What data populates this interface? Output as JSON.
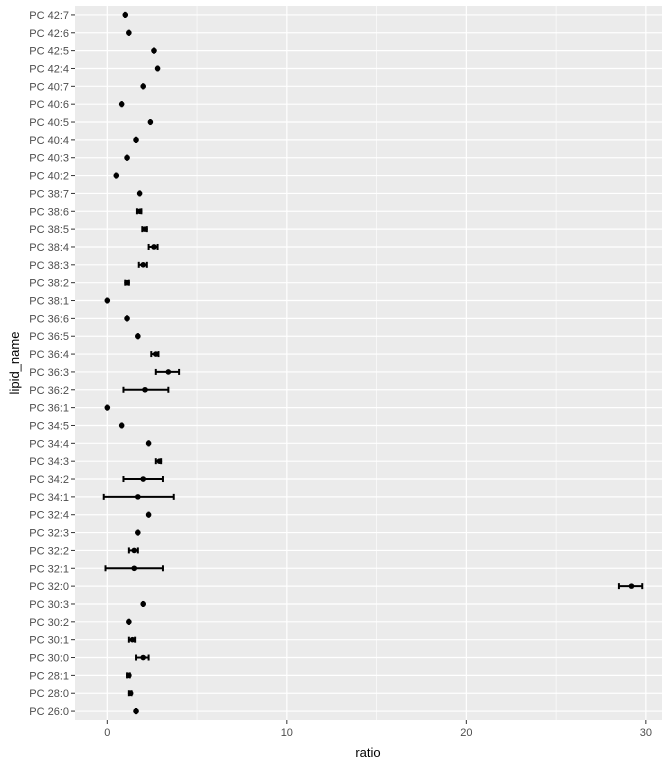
{
  "chart_data": {
    "type": "scatter",
    "xlabel": "ratio",
    "ylabel": "lipid_name",
    "xlim": [
      -1.8,
      30.9
    ],
    "x_ticks": [
      0,
      10,
      20,
      30
    ],
    "x_tick_labels": [
      "0",
      "10",
      "20",
      "30"
    ],
    "grid": true,
    "background": "#EBEBEB",
    "grid_color": "#FFFFFF",
    "point_color": "#000000",
    "categories": [
      "PC 42:7",
      "PC 42:6",
      "PC 42:5",
      "PC 42:4",
      "PC 40:7",
      "PC 40:6",
      "PC 40:5",
      "PC 40:4",
      "PC 40:3",
      "PC 40:2",
      "PC 38:7",
      "PC 38:6",
      "PC 38:5",
      "PC 38:4",
      "PC 38:3",
      "PC 38:2",
      "PC 38:1",
      "PC 36:6",
      "PC 36:5",
      "PC 36:4",
      "PC 36:3",
      "PC 36:2",
      "PC 36:1",
      "PC 34:5",
      "PC 34:4",
      "PC 34:3",
      "PC 34:2",
      "PC 34:1",
      "PC 32:4",
      "PC 32:3",
      "PC 32:2",
      "PC 32:1",
      "PC 32:0",
      "PC 30:3",
      "PC 30:2",
      "PC 30:1",
      "PC 30:0",
      "PC 28:1",
      "PC 28:0",
      "PC 26:0"
    ],
    "values": [
      1.0,
      1.2,
      2.6,
      2.8,
      2.0,
      0.8,
      2.4,
      1.6,
      1.1,
      0.5,
      1.8,
      1.8,
      2.1,
      2.6,
      2.0,
      1.1,
      0.0,
      1.1,
      1.7,
      2.7,
      3.4,
      2.1,
      0.0,
      0.8,
      2.3,
      2.9,
      2.0,
      1.7,
      2.3,
      1.7,
      1.5,
      1.5,
      29.2,
      2.0,
      1.2,
      1.4,
      2.0,
      1.2,
      1.3,
      1.6
    ],
    "error_low": [
      1.0,
      1.2,
      2.6,
      2.8,
      2.0,
      0.8,
      2.4,
      1.6,
      1.1,
      0.5,
      1.8,
      1.65,
      1.95,
      2.3,
      1.75,
      1.0,
      0.0,
      1.1,
      1.7,
      2.45,
      2.7,
      0.9,
      0.0,
      0.8,
      2.3,
      2.7,
      0.9,
      -0.2,
      2.3,
      1.7,
      1.2,
      -0.1,
      28.5,
      2.0,
      1.2,
      1.2,
      1.6,
      1.1,
      1.2,
      1.6
    ],
    "error_high": [
      1.0,
      1.2,
      2.6,
      2.8,
      2.0,
      0.8,
      2.4,
      1.6,
      1.1,
      0.5,
      1.8,
      1.9,
      2.2,
      2.8,
      2.2,
      1.2,
      0.0,
      1.1,
      1.7,
      2.85,
      4.0,
      3.4,
      0.0,
      0.8,
      2.3,
      3.0,
      3.1,
      3.7,
      2.3,
      1.7,
      1.7,
      3.1,
      29.8,
      2.0,
      1.2,
      1.55,
      2.3,
      1.25,
      1.35,
      1.6
    ]
  }
}
